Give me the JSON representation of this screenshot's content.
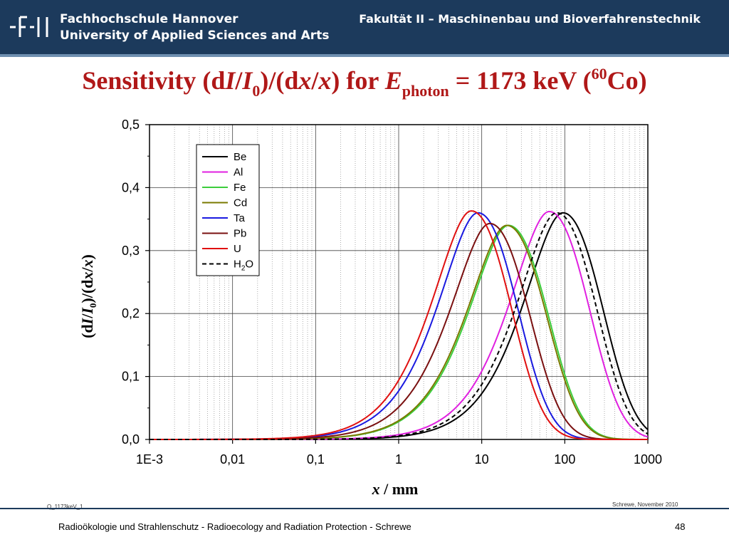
{
  "header": {
    "school_line1": "Fachhochschule Hannover",
    "school_line2": "University of Applied Sciences and Arts",
    "faculty": "Fakultät II – Maschinenbau und Bioverfahrenstechnik",
    "background_color": "#1c3a5c"
  },
  "title": {
    "part1": "Sensitivity (d",
    "I1": "I",
    "slash1": "/",
    "I2": "I",
    "sub0": "0",
    "part2": ")/(d",
    "x1": "x",
    "slash2": "/",
    "x2": "x",
    "part3": ") for ",
    "E": "E",
    "sub_photon": "photon",
    "part4": " = 1173 keV (",
    "sup_60": "60",
    "part5": "Co)",
    "color": "#b01818"
  },
  "axes": {
    "ylabel_a": "(d",
    "ylabel_I1": "I",
    "ylabel_slash": "/",
    "ylabel_I2": "I",
    "ylabel_sub": "0",
    "ylabel_b": ")/(d",
    "ylabel_x1": "x",
    "ylabel_slash2": "/",
    "ylabel_x2": "x",
    "ylabel_c": ")",
    "xlabel_x": "x",
    "xlabel_rest": " / mm"
  },
  "chart_data": {
    "type": "line",
    "x_scale": "log",
    "xlim": [
      0.001,
      1000
    ],
    "ylim": [
      0.0,
      0.5
    ],
    "x_tick_labels": [
      "1E-3",
      "0,01",
      "0,1",
      "1",
      "10",
      "100",
      "1000"
    ],
    "y_tick_labels": [
      "0,0",
      "0,1",
      "0,2",
      "0,3",
      "0,4",
      "0,5"
    ],
    "grid": true,
    "legend_position": "top-left",
    "series": [
      {
        "name": "Be",
        "color": "#000000",
        "dash": false,
        "peak_x": 95,
        "peak_y": 0.36
      },
      {
        "name": "Al",
        "color": "#e020e0",
        "dash": false,
        "peak_x": 65,
        "peak_y": 0.362
      },
      {
        "name": "Fe",
        "color": "#3ccd3c",
        "dash": false,
        "peak_x": 21,
        "peak_y": 0.34
      },
      {
        "name": "Cd",
        "color": "#7a7a00",
        "dash": false,
        "peak_x": 20,
        "peak_y": 0.34
      },
      {
        "name": "Ta",
        "color": "#1a1ae0",
        "dash": false,
        "peak_x": 9,
        "peak_y": 0.36
      },
      {
        "name": "Pb",
        "color": "#7a1010",
        "dash": false,
        "peak_x": 12.5,
        "peak_y": 0.343
      },
      {
        "name": "U",
        "color": "#e01010",
        "dash": false,
        "peak_x": 7.5,
        "peak_y": 0.363
      },
      {
        "name": "H2O",
        "label_main": "H",
        "label_sub": "2",
        "label_end": "O",
        "color": "#000000",
        "dash": true,
        "peak_x": 80,
        "peak_y": 0.36
      }
    ]
  },
  "notes": {
    "left_small": "Q_1173keV_1",
    "right_small": "Schrewe, November 2010"
  },
  "footer": {
    "text": "Radioökologie und Strahlenschutz - Radioecology and Radiation Protection - Schrewe",
    "page": "48"
  }
}
